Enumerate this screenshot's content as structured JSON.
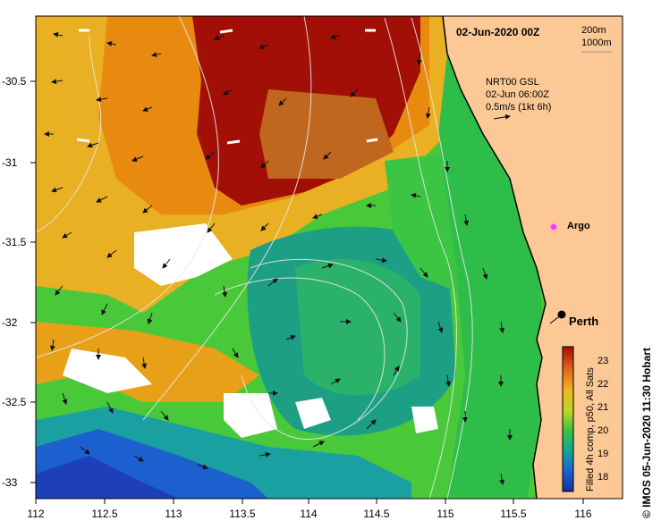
{
  "title": "02-Jun-2020 00Z",
  "scale": {
    "line1": "200m",
    "line2": "1000m"
  },
  "legend": {
    "line1": "NRT00 GSL",
    "line2": "02-Jun 06:00Z",
    "line3": "0.5m/s (1kt 6h)"
  },
  "places": {
    "argo": "Argo",
    "perth": "Perth"
  },
  "axes": {
    "x_ticks": [
      "112",
      "112.5",
      "113",
      "113.5",
      "114",
      "114.5",
      "115",
      "115.5",
      "116"
    ],
    "y_ticks": [
      "-30.5",
      "-31",
      "-31.5",
      "-32",
      "-32.5",
      "-33"
    ]
  },
  "colorbar": {
    "labels": [
      "23",
      "22",
      "21",
      "20",
      "19",
      "18"
    ],
    "caption": "Filled 4h comp, p50, All Sats"
  },
  "credit": "IMOS 05-Jun-2020 11:30 Hobart",
  "copyright_symbol": "©",
  "colors": {
    "warm": "#a10f06",
    "orange": "#e88a10",
    "yellow": "#e6c21a",
    "green": "#49c83a",
    "teal": "#1d9f86",
    "blue": "#1c5fcf",
    "land": "#fcc896",
    "argo": "#ff33ff"
  }
}
